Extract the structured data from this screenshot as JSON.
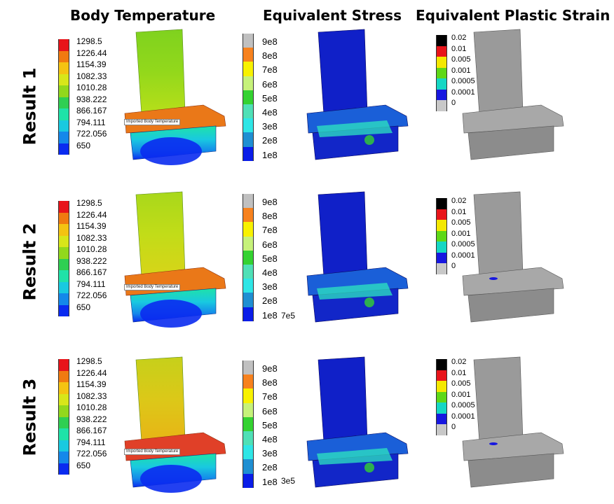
{
  "columns": [
    {
      "title": "Body Temperature"
    },
    {
      "title": "Equivalent Stress"
    },
    {
      "title": "Equivalent Plastic Strain"
    }
  ],
  "rows": [
    {
      "title": "Result 1",
      "probe_label": "Imported Body Temperature",
      "stress_tail_label": ""
    },
    {
      "title": "Result 2",
      "probe_label": "Imported Body Temperature",
      "stress_tail_label": "7e5"
    },
    {
      "title": "Result 3",
      "probe_label": "Imported Body Temperature",
      "stress_tail_label": "3e5"
    }
  ],
  "legends": {
    "temperature": {
      "labels": [
        "1298.5",
        "1226.44",
        "1154.39",
        "1082.33",
        "1010.28",
        "938.222",
        "866.167",
        "794.111",
        "722.056",
        "650"
      ],
      "colors": [
        "#e8141a",
        "#f07a10",
        "#f4c312",
        "#d8e61a",
        "#92d81c",
        "#2fcf52",
        "#1fe2a8",
        "#19c9e0",
        "#1488ea",
        "#0a2bf0"
      ]
    },
    "stress": {
      "labels": [
        "9e8",
        "8e8",
        "7e8",
        "6e8",
        "5e8",
        "4e8",
        "3e8",
        "2e8",
        "1e8"
      ],
      "colors": [
        "#c0c0c0",
        "#f7821e",
        "#f8f200",
        "#c6f27a",
        "#34d231",
        "#4fe0b6",
        "#2ee6e6",
        "#1f8fd2",
        "#0a1de8"
      ]
    },
    "strain": {
      "labels": [
        "0.02",
        "0.01",
        "0.005",
        "0.001",
        "0.0005",
        "0.0001",
        "0"
      ],
      "colors": [
        "#000000",
        "#e8141a",
        "#f4e800",
        "#5ed817",
        "#15d7c4",
        "#1717e0",
        "#c8c8c8"
      ]
    }
  }
}
